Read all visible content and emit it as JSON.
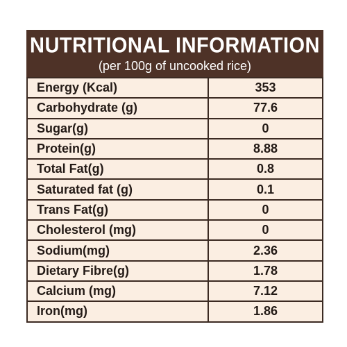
{
  "header": {
    "title": "NUTRITIONAL INFORMATION",
    "subtitle": "(per 100g of uncooked rice)"
  },
  "rows": [
    {
      "label": "Energy (Kcal)",
      "value": "353"
    },
    {
      "label": "Carbohydrate (g)",
      "value": "77.6"
    },
    {
      "label": "Sugar(g)",
      "value": "0"
    },
    {
      "label": "Protein(g)",
      "value": "8.88"
    },
    {
      "label": "Total Fat(g)",
      "value": "0.8"
    },
    {
      "label": "Saturated fat (g)",
      "value": "0.1"
    },
    {
      "label": "Trans Fat(g)",
      "value": "0"
    },
    {
      "label": "Cholesterol (mg)",
      "value": "0"
    },
    {
      "label": "Sodium(mg)",
      "value": "2.36"
    },
    {
      "label": "Dietary Fibre(g)",
      "value": "1.78"
    },
    {
      "label": "Calcium (mg)",
      "value": "7.12"
    },
    {
      "label": "Iron(mg)",
      "value": "1.86"
    }
  ],
  "colors": {
    "header_bg": "#4e3227",
    "table_bg": "#fbeee2",
    "border": "#3b2a22"
  }
}
